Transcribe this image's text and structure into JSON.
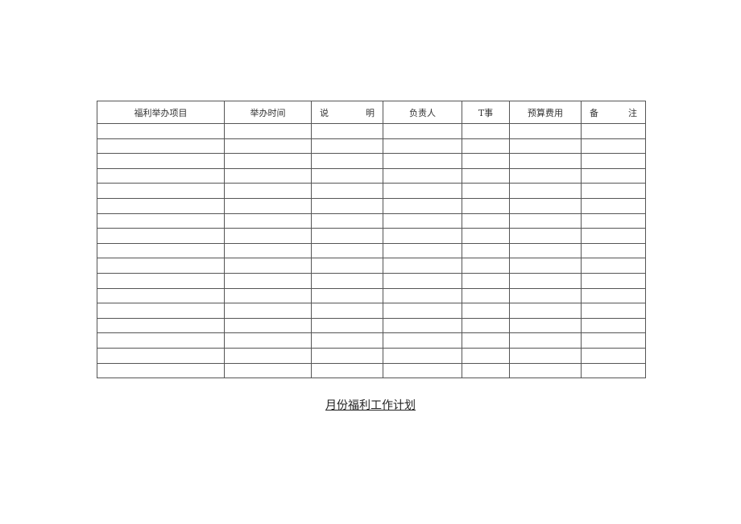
{
  "table": {
    "headers": [
      "福利举办项目",
      "举办时间",
      [
        "说",
        "明"
      ],
      "负责人",
      "T事",
      "预算费用",
      [
        "备",
        "注"
      ]
    ],
    "empty_rows": 17
  },
  "title": "月份福利工作计划"
}
